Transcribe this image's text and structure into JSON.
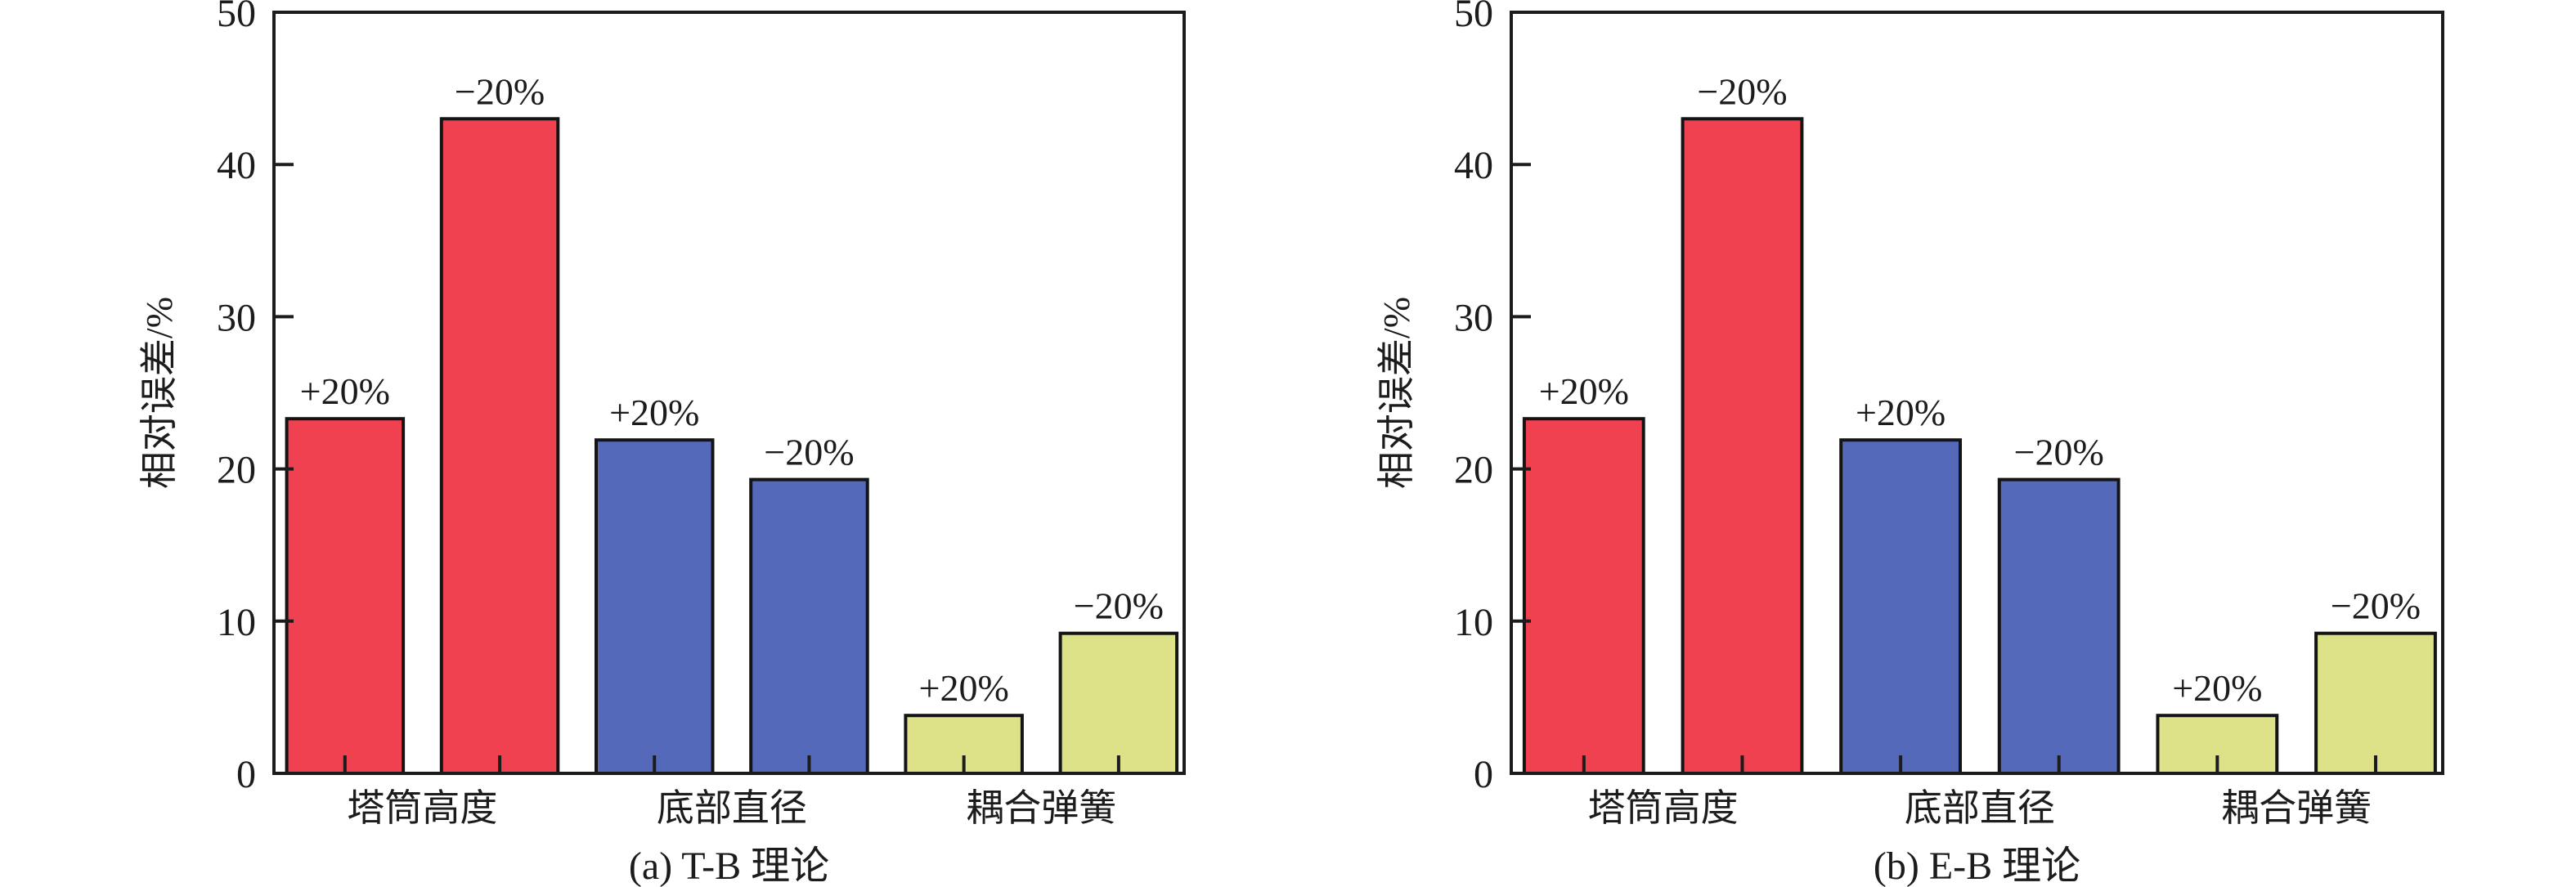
{
  "figure": {
    "background": "#ffffff",
    "axis_color": "#1c1c1c",
    "bar_border_color": "#141414"
  },
  "chart_data": [
    {
      "type": "bar",
      "panel": "a",
      "caption": "(a) T-B 理论",
      "ylabel": "相对误差/%",
      "xlabel": "",
      "ylim": [
        0,
        50
      ],
      "yticks": [
        0,
        10,
        20,
        30,
        40,
        50
      ],
      "grid": "off",
      "legend": "none",
      "categories": [
        "塔筒高度",
        "底部直径",
        "耦合弹簧"
      ],
      "series_labels": [
        "+20%",
        "−20%"
      ],
      "groups": [
        {
          "category": "塔筒高度",
          "color": "#ef4150",
          "bars": [
            {
              "label": "+20%",
              "value": 23.3
            },
            {
              "label": "−20%",
              "value": 43.0
            }
          ]
        },
        {
          "category": "底部直径",
          "color": "#5569bb",
          "bars": [
            {
              "label": "+20%",
              "value": 21.9
            },
            {
              "label": "−20%",
              "value": 19.3
            }
          ]
        },
        {
          "category": "耦合弹簧",
          "color": "#dde289",
          "bars": [
            {
              "label": "+20%",
              "value": 3.8
            },
            {
              "label": "−20%",
              "value": 9.2
            }
          ]
        }
      ]
    },
    {
      "type": "bar",
      "panel": "b",
      "caption": "(b) E-B 理论",
      "ylabel": "相对误差/%",
      "xlabel": "",
      "ylim": [
        0,
        50
      ],
      "yticks": [
        0,
        10,
        20,
        30,
        40,
        50
      ],
      "grid": "off",
      "legend": "none",
      "categories": [
        "塔筒高度",
        "底部直径",
        "耦合弹簧"
      ],
      "series_labels": [
        "+20%",
        "−20%"
      ],
      "groups": [
        {
          "category": "塔筒高度",
          "color": "#ef4150",
          "bars": [
            {
              "label": "+20%",
              "value": 23.3
            },
            {
              "label": "−20%",
              "value": 43.0
            }
          ]
        },
        {
          "category": "底部直径",
          "color": "#5569bb",
          "bars": [
            {
              "label": "+20%",
              "value": 21.9
            },
            {
              "label": "−20%",
              "value": 19.3
            }
          ]
        },
        {
          "category": "耦合弹簧",
          "color": "#dde289",
          "bars": [
            {
              "label": "+20%",
              "value": 3.8
            },
            {
              "label": "−20%",
              "value": 9.2
            }
          ]
        }
      ]
    }
  ]
}
